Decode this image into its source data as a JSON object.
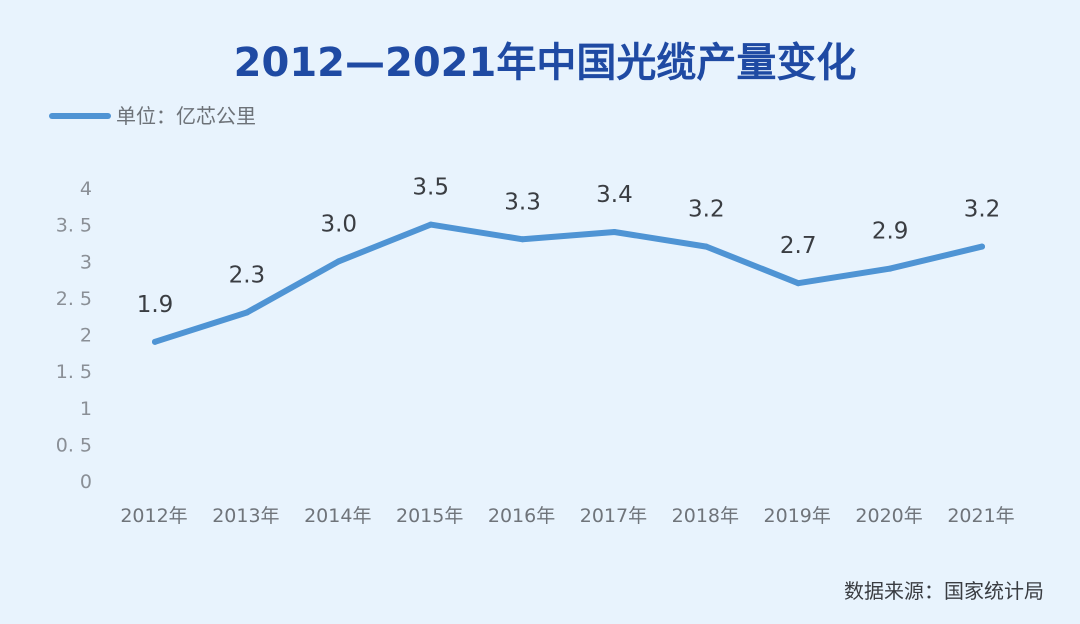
{
  "chart_data": {
    "type": "line",
    "title": "2012—2021年中国光缆产量变化",
    "legend": {
      "label": "单位：亿芯公里",
      "placement": "top-left"
    },
    "categories": [
      "2012年",
      "2013年",
      "2014年",
      "2015年",
      "2016年",
      "2017年",
      "2018年",
      "2019年",
      "2020年",
      "2021年"
    ],
    "series": [
      {
        "values": [
          1.9,
          2.3,
          3.0,
          3.5,
          3.3,
          3.4,
          3.2,
          2.7,
          2.9,
          3.2
        ],
        "labels": [
          "1.9",
          "2.3",
          "3.0",
          "3.5",
          "3.3",
          "3.4",
          "3.2",
          "2.7",
          "2.9",
          "3.2"
        ]
      }
    ],
    "y_ticks": [
      {
        "value": 0,
        "label": "0"
      },
      {
        "value": 0.5,
        "label": "0. 5"
      },
      {
        "value": 1,
        "label": "1"
      },
      {
        "value": 1.5,
        "label": "1. 5"
      },
      {
        "value": 2,
        "label": "2"
      },
      {
        "value": 2.5,
        "label": "2. 5"
      },
      {
        "value": 3,
        "label": "3"
      },
      {
        "value": 3.5,
        "label": "3. 5"
      },
      {
        "value": 4,
        "label": "4"
      }
    ],
    "ylim": [
      0,
      4
    ],
    "grid": false,
    "line_color": "#4f94d4",
    "source": "数据来源：国家统计局"
  }
}
